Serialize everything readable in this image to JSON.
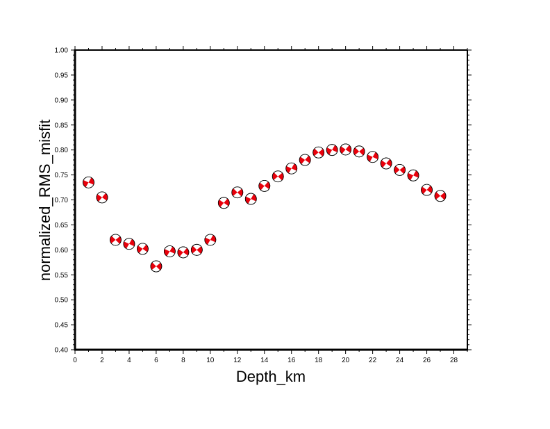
{
  "chart_data": {
    "type": "scatter",
    "title": "",
    "xlabel": "Depth_km",
    "ylabel": "normalized_RMS_misfit",
    "xlim": [
      0,
      29
    ],
    "ylim": [
      0.4,
      1.0
    ],
    "x_major_ticks": [
      0,
      2,
      4,
      6,
      8,
      10,
      12,
      14,
      16,
      18,
      20,
      22,
      24,
      26,
      28
    ],
    "y_major_ticks": [
      0.4,
      0.45,
      0.5,
      0.55,
      0.6,
      0.65,
      0.7,
      0.75,
      0.8,
      0.85,
      0.9,
      0.95,
      1.0
    ],
    "x_tick_labels": [
      "0",
      "2",
      "4",
      "6",
      "8",
      "10",
      "12",
      "14",
      "16",
      "18",
      "20",
      "22",
      "24",
      "26",
      "28"
    ],
    "y_tick_labels": [
      "0.40",
      "0.45",
      "0.50",
      "0.55",
      "0.60",
      "0.65",
      "0.70",
      "0.75",
      "0.80",
      "0.85",
      "0.90",
      "0.95",
      "1.00"
    ],
    "grid": false,
    "marker": "focal-mechanism-beachball",
    "marker_color": "#e8000b",
    "x": [
      1,
      2,
      3,
      4,
      5,
      6,
      7,
      8,
      9,
      10,
      11,
      12,
      13,
      14,
      15,
      16,
      17,
      18,
      19,
      20,
      21,
      22,
      23,
      24,
      25,
      26,
      27
    ],
    "y": [
      0.735,
      0.705,
      0.62,
      0.612,
      0.602,
      0.567,
      0.597,
      0.595,
      0.6,
      0.62,
      0.694,
      0.715,
      0.702,
      0.728,
      0.747,
      0.763,
      0.78,
      0.795,
      0.8,
      0.801,
      0.797,
      0.786,
      0.773,
      0.76,
      0.749,
      0.72,
      0.708
    ]
  }
}
